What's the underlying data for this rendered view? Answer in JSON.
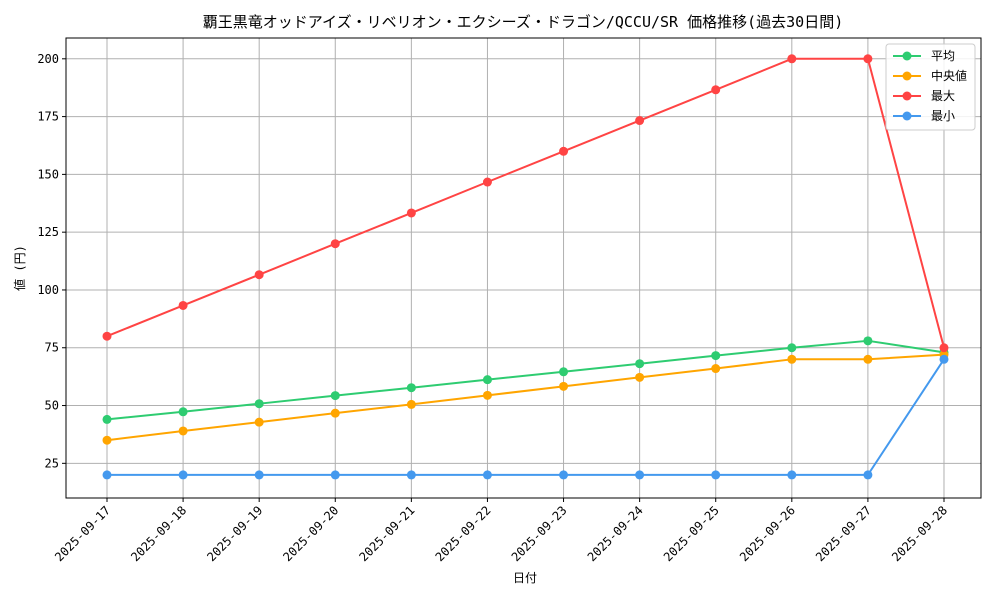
{
  "chart_data": {
    "type": "line",
    "title": "覇王黒竜オッドアイズ・リベリオン・エクシーズ・ドラゴン/QCCU/SR 価格推移(過去30日間)",
    "xlabel": "日付",
    "ylabel": "値 (円)",
    "grid": true,
    "legend_position": "top-right",
    "ylim": [
      10,
      209
    ],
    "yticks": [
      25,
      50,
      75,
      100,
      125,
      150,
      175,
      200
    ],
    "categories": [
      "2025-09-17",
      "2025-09-18",
      "2025-09-19",
      "2025-09-20",
      "2025-09-21",
      "2025-09-22",
      "2025-09-23",
      "2025-09-24",
      "2025-09-25",
      "2025-09-26",
      "2025-09-27",
      "2025-09-28"
    ],
    "series": [
      {
        "name": "平均",
        "color": "#2ecc71",
        "values": [
          44,
          47.3,
          50.8,
          54.3,
          57.7,
          61.2,
          64.6,
          68.1,
          71.6,
          75,
          78,
          73
        ]
      },
      {
        "name": "中央値",
        "color": "#ffa500",
        "values": [
          35,
          39,
          42.8,
          46.7,
          50.5,
          54.4,
          58.3,
          62.2,
          66,
          70,
          70,
          72
        ]
      },
      {
        "name": "最大",
        "color": "#ff4444",
        "values": [
          80,
          93.3,
          106.6,
          120,
          133.3,
          146.7,
          160,
          173.3,
          186.6,
          200,
          200,
          75
        ]
      },
      {
        "name": "最小",
        "color": "#4499ee",
        "values": [
          20,
          20,
          20,
          20,
          20,
          20,
          20,
          20,
          20,
          20,
          20,
          70
        ]
      }
    ]
  }
}
